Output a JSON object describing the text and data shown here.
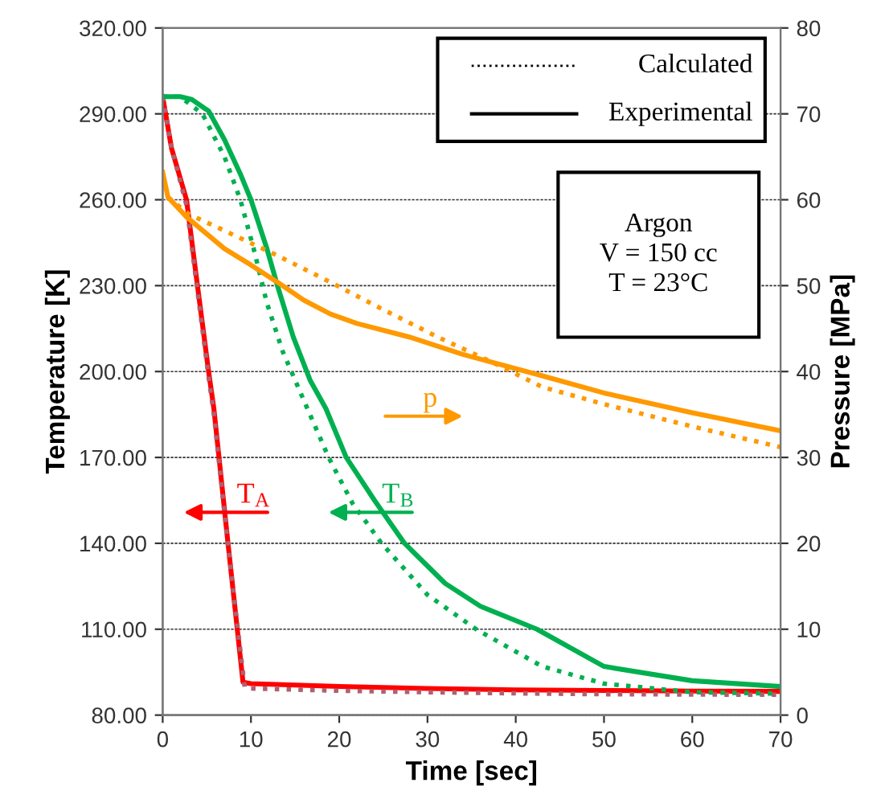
{
  "chart_data": {
    "type": "line",
    "xlabel": "Time [sec]",
    "ylabel": "Temperature [K]",
    "y2label": "Pressure [MPa]",
    "xlim": [
      0,
      70
    ],
    "xticks": [
      0,
      10,
      20,
      30,
      40,
      50,
      60,
      70
    ],
    "ylim": [
      80,
      320
    ],
    "yticks": [
      {
        "value": 80,
        "label": "80.00"
      },
      {
        "value": 110,
        "label": "110.00"
      },
      {
        "value": 140,
        "label": "140.00"
      },
      {
        "value": 170,
        "label": "170.00"
      },
      {
        "value": 200,
        "label": "200.00"
      },
      {
        "value": 230,
        "label": "230.00"
      },
      {
        "value": 260,
        "label": "260.00"
      },
      {
        "value": 290,
        "label": "290.00"
      },
      {
        "value": 320,
        "label": "320.00"
      }
    ],
    "y2lim": [
      0,
      80
    ],
    "y2ticks": [
      0,
      10,
      20,
      30,
      40,
      50,
      60,
      70,
      80
    ],
    "grid": "y",
    "legend": "left",
    "marker": "none",
    "series": [
      {
        "name": "T$_{A}$",
        "color": "#ff0000",
        "line_style": "solid",
        "x": [
          0,
          1,
          2.7,
          3.9,
          5.2,
          5.8,
          7.4,
          9.1,
          10,
          20,
          30,
          40,
          50,
          60,
          70
        ],
        "values": [
          296,
          278,
          260,
          231,
          200,
          187,
          140,
          91.5,
          91,
          90,
          89.3,
          88.8,
          88.6,
          88.4,
          88.3
        ]
      },
      {
        "color": "#b06070",
        "line_style": "dotted",
        "x": [
          0,
          1,
          2.7,
          3.9,
          5.2,
          5.8,
          7.4,
          9.3,
          10,
          20,
          30,
          40,
          50,
          60,
          70
        ],
        "values": [
          296,
          278,
          258,
          229,
          198,
          185,
          139,
          89.6,
          89.3,
          88.5,
          88,
          87.6,
          87.3,
          87.2,
          87.1
        ]
      },
      {
        "name": "T$_{B}$",
        "color": "#00b050",
        "line_style": "solid",
        "x": [
          0,
          2,
          3.3,
          5.2,
          7,
          8.8,
          10,
          11.8,
          13,
          14.8,
          16.7,
          18.5,
          20.8,
          24,
          27.4,
          32,
          36,
          42.4,
          50,
          60,
          70
        ],
        "values": [
          296,
          296,
          295,
          291,
          281,
          269,
          260,
          243,
          230,
          212,
          197,
          187,
          170,
          155,
          140,
          126,
          118,
          110,
          97,
          92,
          90
        ]
      },
      {
        "color": "#00b050",
        "line_style": "dotted",
        "x": [
          0,
          2,
          2.4,
          4.5,
          7,
          8.8,
          10.3,
          11.8,
          13.6,
          15.6,
          18.8,
          21.5,
          24.8,
          30,
          35.5,
          43,
          50,
          60,
          70
        ],
        "values": [
          296,
          296,
          295,
          290,
          275,
          260,
          243,
          224,
          207,
          192.7,
          170,
          154,
          140,
          122,
          110,
          97,
          91,
          88,
          87.5
        ]
      },
      {
        "name": "p",
        "color": "#ff9900",
        "line_style": "solid",
        "axis": "y2",
        "x": [
          0,
          0.6,
          2.7,
          7,
          10,
          13,
          16,
          19,
          22,
          28,
          34,
          43,
          50,
          60,
          70
        ],
        "values": [
          63.2,
          60.3,
          58,
          54.3,
          52.4,
          50.4,
          48.3,
          46.7,
          45.6,
          44,
          42,
          39.5,
          37.5,
          35.2,
          33.1
        ]
      },
      {
        "color": "#ff9900",
        "line_style": "dotted",
        "axis": "y2",
        "x": [
          0.6,
          3,
          7,
          13,
          19,
          25,
          31.2,
          37.3,
          43,
          50,
          60,
          70
        ],
        "values": [
          60.3,
          58.3,
          56.4,
          53.5,
          50.4,
          47.2,
          44,
          41.1,
          38.2,
          36.2,
          33.6,
          31.2
        ]
      }
    ],
    "annotations": [
      "Calculated",
      "Experimental",
      "Argon\nV = 150 cc\nT = 23°C"
    ]
  }
}
